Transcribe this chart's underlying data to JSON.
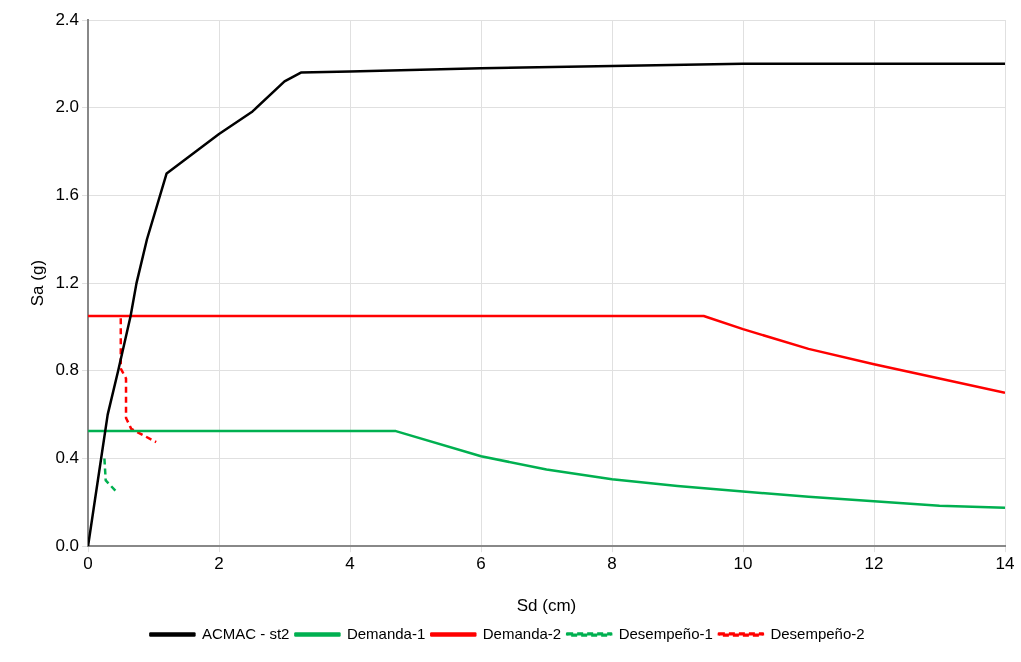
{
  "chart_data": {
    "type": "line",
    "xlabel": "Sd (cm)",
    "ylabel": "Sa (g)",
    "xlim": [
      0,
      14
    ],
    "xticks": [
      0,
      2,
      4,
      6,
      8,
      10,
      12,
      14
    ],
    "ylim": [
      0,
      2.4
    ],
    "yticks": [
      {
        "value": 0,
        "label": "0.0"
      },
      {
        "value": 0.4,
        "label": "0.4"
      },
      {
        "value": 0.8,
        "label": "0.8"
      },
      {
        "value": 1.2,
        "label": "1.2"
      },
      {
        "value": 1.6,
        "label": "1.6"
      },
      {
        "value": 2.0,
        "label": "2.0"
      },
      {
        "value": 2.4,
        "label": "2.4"
      }
    ],
    "grid": true,
    "legend": "bottom",
    "marker": "none",
    "series": [
      {
        "name": "ACMAC - st2",
        "color": "#000000",
        "line_style": "solid",
        "x": [
          0,
          0.2,
          0.3,
          0.46,
          0.65,
          0.74,
          0.9,
          1.2,
          2,
          2.5,
          3,
          3.25,
          4,
          6,
          8,
          10,
          14
        ],
        "values": [
          0,
          0.4,
          0.6,
          0.8,
          1.05,
          1.2,
          1.4,
          1.7,
          1.88,
          1.98,
          2.12,
          2.16,
          2.165,
          2.18,
          2.19,
          2.2,
          2.2
        ]
      },
      {
        "name": "Demanda-1",
        "color": "#00b050",
        "line_style": "solid",
        "x": [
          0,
          4.7,
          6,
          7,
          8,
          9,
          10,
          11,
          12,
          13,
          14
        ],
        "values": [
          0.525,
          0.525,
          0.41,
          0.35,
          0.305,
          0.275,
          0.25,
          0.225,
          0.205,
          0.185,
          0.175
        ]
      },
      {
        "name": "Demanda-2",
        "color": "#ff0000",
        "line_style": "solid",
        "x": [
          0,
          9.4,
          10,
          11,
          12,
          13,
          14
        ],
        "values": [
          1.05,
          1.05,
          0.99,
          0.9,
          0.83,
          0.765,
          0.7
        ]
      },
      {
        "name": "Desempeño-1",
        "color": "#00b050",
        "line_style": "dashed",
        "x": [
          0.25,
          0.27,
          0.46
        ],
        "values": [
          0.4,
          0.3,
          0.24
        ]
      },
      {
        "name": "Desempeño-2",
        "color": "#ff0000",
        "line_style": "dashed",
        "x": [
          0.5,
          0.5,
          0.58,
          0.58,
          0.66,
          1.04
        ],
        "values": [
          1.04,
          0.81,
          0.765,
          0.585,
          0.535,
          0.475
        ]
      }
    ]
  }
}
